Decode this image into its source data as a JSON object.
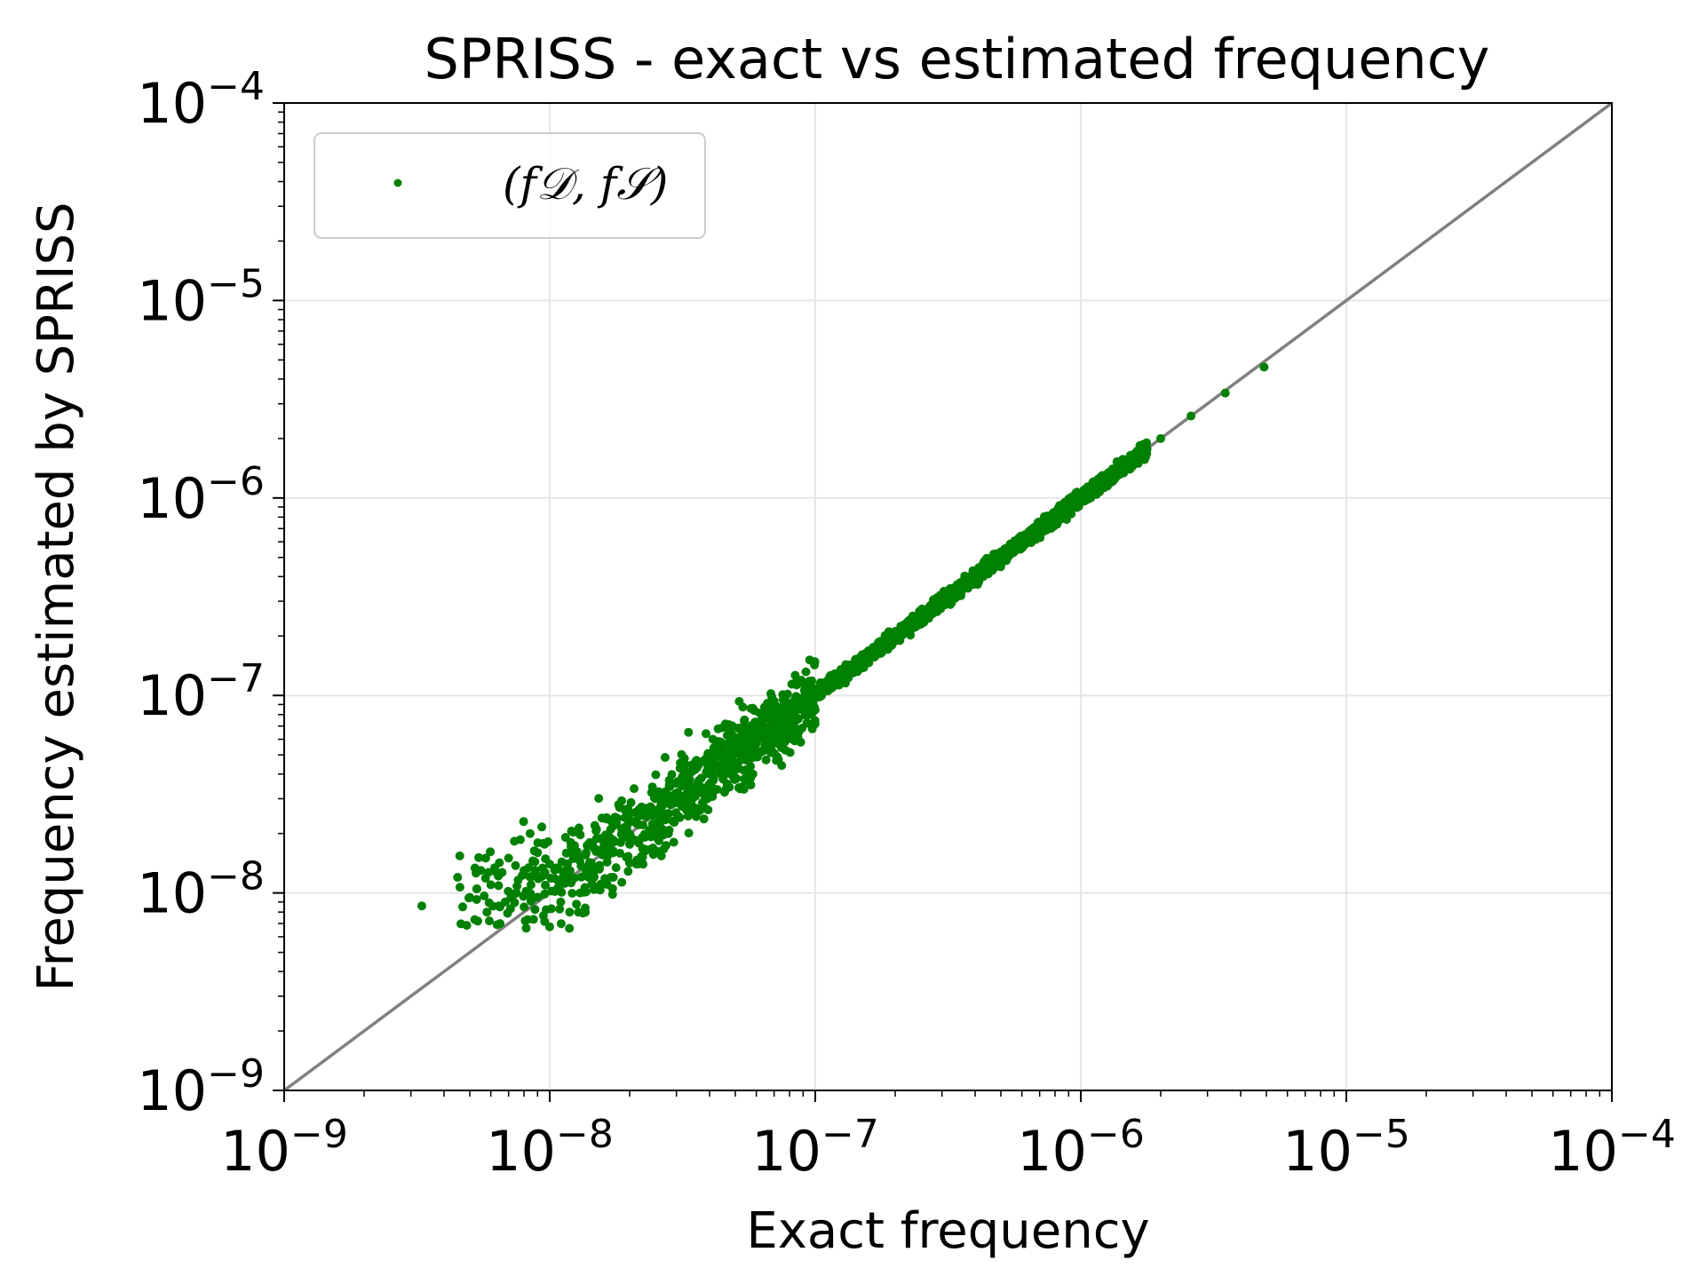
{
  "chart_data": {
    "type": "scatter",
    "title": "SPRISS - exact vs estimated frequency",
    "xlabel": "Exact frequency",
    "ylabel": "Frequency estimated by SPRISS",
    "xscale": "log",
    "yscale": "log",
    "xlim": [
      1e-09,
      0.0001
    ],
    "ylim": [
      1e-09,
      0.0001
    ],
    "grid": true,
    "x_ticks": [
      {
        "value": 1e-09,
        "label": "10⁻⁹"
      },
      {
        "value": 1e-08,
        "label": "10⁻⁸"
      },
      {
        "value": 1e-07,
        "label": "10⁻⁷"
      },
      {
        "value": 1e-06,
        "label": "10⁻⁶"
      },
      {
        "value": 1e-05,
        "label": "10⁻⁵"
      },
      {
        "value": 0.0001,
        "label": "10⁻⁴"
      }
    ],
    "y_ticks": [
      {
        "value": 1e-09,
        "label": "10⁻⁹"
      },
      {
        "value": 1e-08,
        "label": "10⁻⁸"
      },
      {
        "value": 1e-07,
        "label": "10⁻⁷"
      },
      {
        "value": 1e-06,
        "label": "10⁻⁶"
      },
      {
        "value": 1e-05,
        "label": "10⁻⁵"
      },
      {
        "value": 0.0001,
        "label": "10⁻⁴"
      }
    ],
    "legend": {
      "placement": "top-left",
      "entries": [
        {
          "label": "(f𝒟, f𝒮)",
          "color": "#008000"
        }
      ]
    },
    "reference_line": {
      "from": [
        1e-09,
        1e-09
      ],
      "to": [
        0.0001,
        0.0001
      ],
      "color": "#808080"
    },
    "series": [
      {
        "color": "#008000",
        "x": [
          3.3e-09,
          4.5e-09,
          5e-09,
          5.5e-09,
          6e-09,
          6.5e-09,
          7e-09,
          8e-09,
          9e-09,
          1e-08,
          1.2e-08,
          1.5e-08,
          2e-08,
          2.5e-08,
          3e-08,
          4e-08,
          5e-08,
          7e-08,
          1e-07,
          1.5e-07,
          2e-07,
          3e-07,
          5e-07,
          7e-07,
          1e-06,
          1.5e-06,
          2e-06,
          2.6e-06,
          3.5e-06,
          4.9e-06,
          4.7e-09,
          5.8e-09,
          6.8e-09,
          7.5e-09,
          8.5e-09,
          1.1e-08,
          1.3e-08,
          1.7e-08,
          2.2e-08,
          2.8e-08,
          3.5e-08,
          6e-08,
          8.5e-08,
          1.2e-07
        ],
        "y": [
          8.6e-09,
          1.2e-08,
          9.5e-09,
          1.3e-08,
          1.1e-08,
          7e-09,
          1.5e-08,
          1.3e-08,
          1.6e-08,
          1.4e-08,
          1.8e-08,
          2.1e-08,
          2.5e-08,
          3e-08,
          3.6e-08,
          4.5e-08,
          5.6e-08,
          7.5e-08,
          1e-07,
          1.5e-07,
          2e-07,
          3e-07,
          5e-07,
          7e-07,
          1e-06,
          1.5e-06,
          2e-06,
          2.6e-06,
          3.4e-06,
          4.6e-06,
          8.5e-09,
          8e-09,
          9e-09,
          1e-08,
          1.1e-08,
          9e-09,
          1e-08,
          1.2e-08,
          1.5e-08,
          2e-08,
          2.7e-08,
          5e-08,
          7.5e-08,
          1.15e-07
        ]
      }
    ]
  }
}
